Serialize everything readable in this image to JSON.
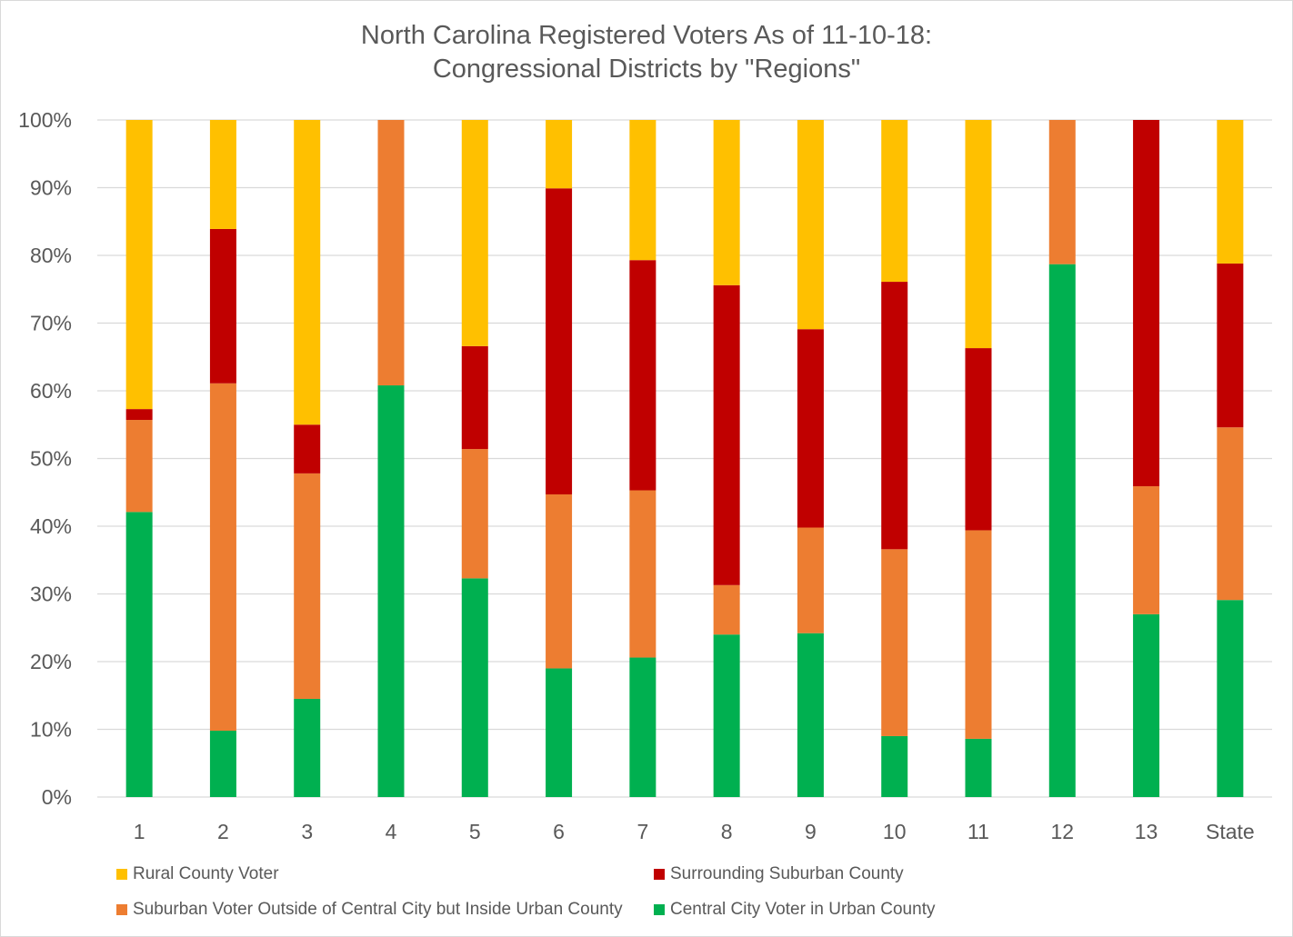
{
  "chart_data": {
    "type": "bar",
    "stacked": true,
    "title_lines": [
      "North Carolina Registered Voters As of 11-10-18:",
      "Congressional Districts by \"Regions\""
    ],
    "categories": [
      "1",
      "2",
      "3",
      "4",
      "5",
      "6",
      "7",
      "8",
      "9",
      "10",
      "11",
      "12",
      "13",
      "State"
    ],
    "y_tick_labels": [
      "0%",
      "10%",
      "20%",
      "30%",
      "40%",
      "50%",
      "60%",
      "70%",
      "80%",
      "90%",
      "100%"
    ],
    "ylim": [
      0,
      100
    ],
    "y_unit": "percent",
    "grid": true,
    "legend_position": "bottom",
    "series": [
      {
        "name": "Central City Voter in Urban County",
        "color": "#00b050",
        "values": [
          42.1,
          9.8,
          14.5,
          60.8,
          32.3,
          19.0,
          20.6,
          24.0,
          24.2,
          9.0,
          8.6,
          78.7,
          27.0,
          29.1
        ]
      },
      {
        "name": "Suburban Voter Outside of Central City but Inside Urban County",
        "color": "#ed7d31",
        "values": [
          13.6,
          51.3,
          33.3,
          39.2,
          19.1,
          25.7,
          24.7,
          7.3,
          15.6,
          27.6,
          30.8,
          21.3,
          18.9,
          25.5
        ]
      },
      {
        "name": "Surrounding Suburban County",
        "color": "#c00000",
        "values": [
          1.6,
          22.8,
          7.2,
          0.0,
          15.2,
          45.2,
          34.0,
          44.3,
          29.3,
          39.5,
          26.9,
          0.0,
          54.1,
          24.2
        ]
      },
      {
        "name": "Rural County Voter",
        "color": "#ffc000",
        "values": [
          42.7,
          16.1,
          45.0,
          0.0,
          33.4,
          10.1,
          20.7,
          24.4,
          30.9,
          23.9,
          33.7,
          0.0,
          0.0,
          21.2
        ]
      }
    ]
  },
  "legend_items": [
    {
      "label": "Rural County Voter",
      "color": "#ffc000"
    },
    {
      "label": "Surrounding Suburban County",
      "color": "#c00000"
    },
    {
      "label": "Suburban Voter Outside of Central City but Inside Urban County",
      "color": "#ed7d31"
    },
    {
      "label": "Central City Voter in Urban County",
      "color": "#00b050"
    }
  ],
  "colors": {
    "gridline": "#d9d9d9",
    "axis_text": "#595959"
  }
}
